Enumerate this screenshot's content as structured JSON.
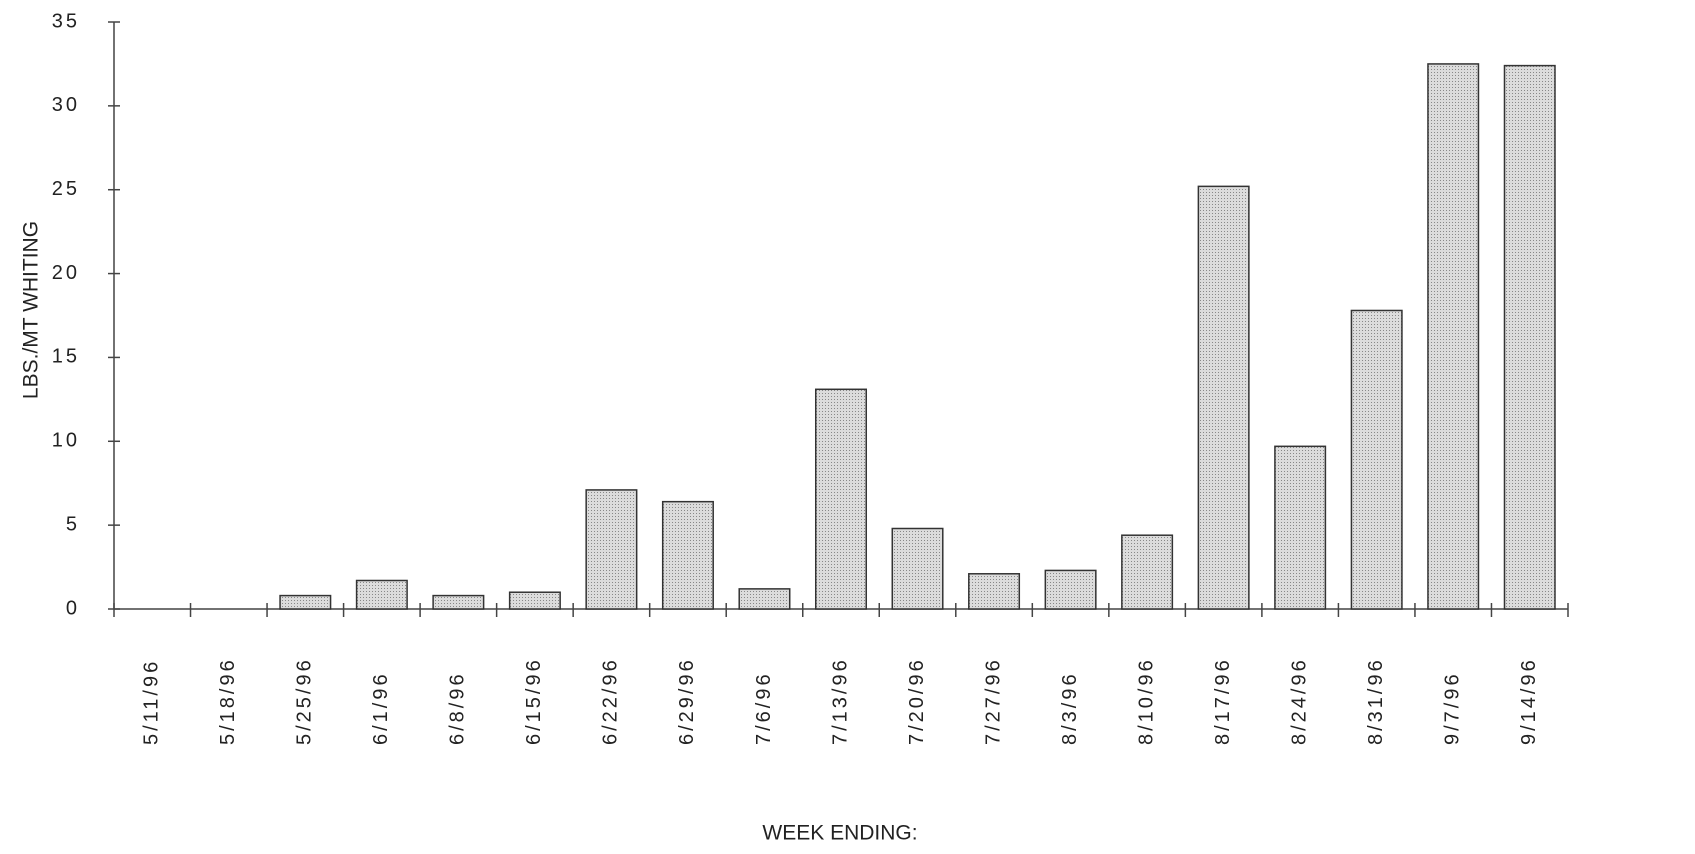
{
  "chart_data": {
    "type": "bar",
    "x_label": "WEEK ENDING:",
    "y_label": "LBS./MT WHITING",
    "categories": [
      "5/11/96",
      "5/18/96",
      "5/25/96",
      "6/1/96",
      "6/8/96",
      "6/15/96",
      "6/22/96",
      "6/29/96",
      "7/6/96",
      "7/13/96",
      "7/20/96",
      "7/27/96",
      "8/3/96",
      "8/10/96",
      "8/17/96",
      "8/24/96",
      "8/31/96",
      "9/7/96",
      "9/14/96"
    ],
    "values": [
      0,
      0,
      0.8,
      1.7,
      0.8,
      1.0,
      7.1,
      6.4,
      1.2,
      13.1,
      4.8,
      2.1,
      2.3,
      4.4,
      25.2,
      9.7,
      17.8,
      32.5,
      32.4
    ],
    "color": "#c9c9c9",
    "ylim": [
      0,
      35
    ],
    "yticks": [
      0,
      5,
      10,
      15,
      20,
      25,
      30,
      35
    ]
  }
}
